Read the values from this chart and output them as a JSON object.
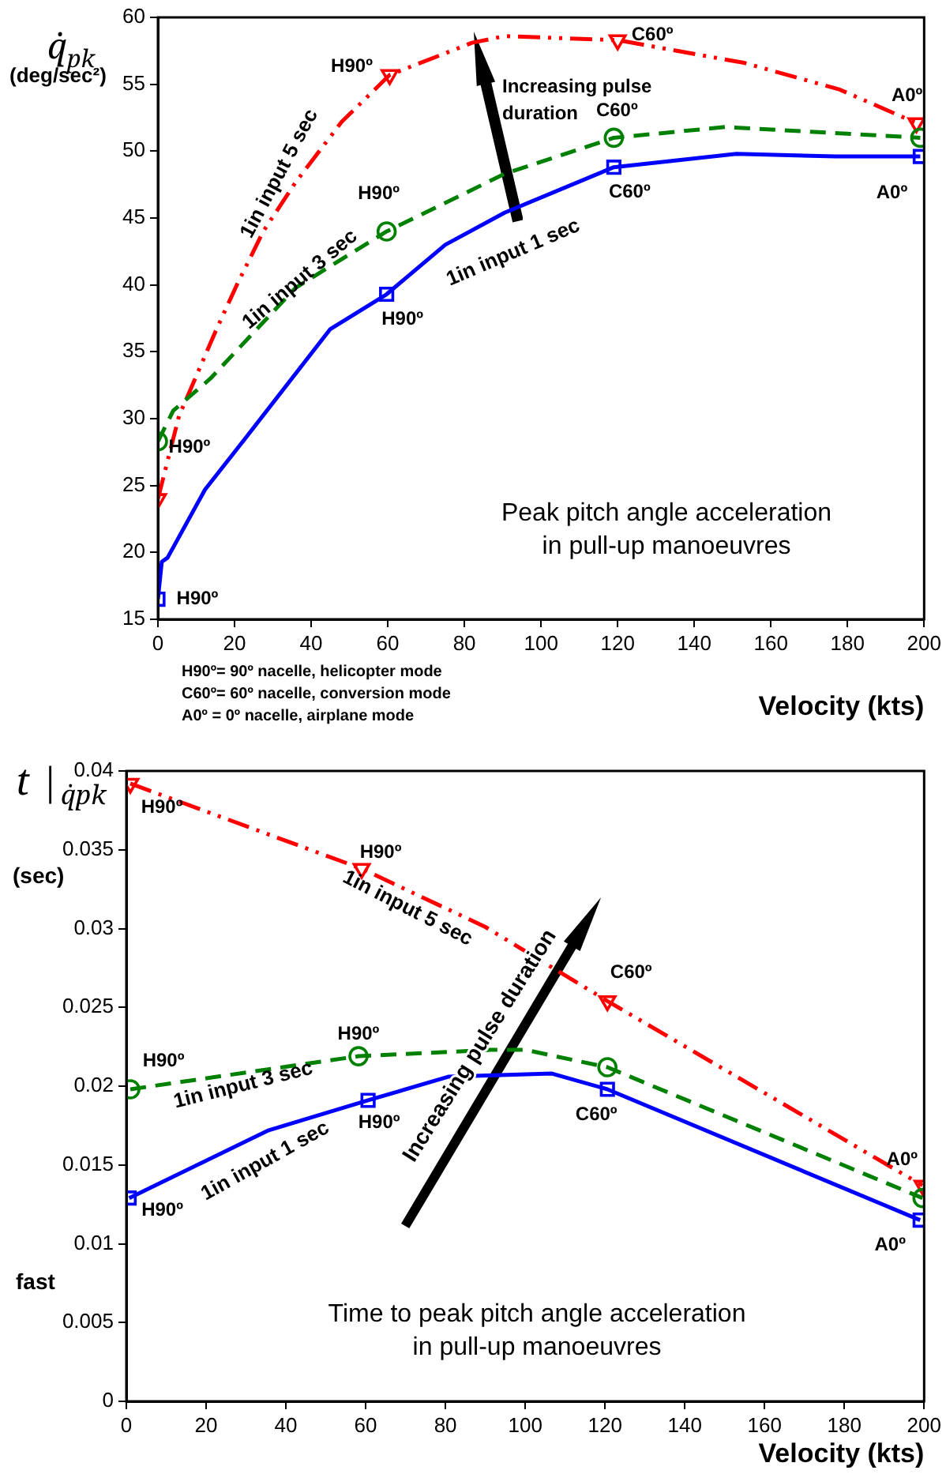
{
  "chart_data": [
    {
      "type": "line",
      "ylabel": "q̇$_{pk}$\n(deg/sec²)",
      "xlabel": "Velocity (kts)",
      "xlim": [
        0,
        200
      ],
      "xticks": [
        0,
        20,
        40,
        60,
        80,
        100,
        120,
        140,
        160,
        180,
        200
      ],
      "ylim": [
        15,
        60
      ],
      "yticks": [
        15,
        20,
        25,
        30,
        35,
        40,
        45,
        50,
        55,
        60
      ],
      "grid": false,
      "legend": false,
      "series": [
        {
          "name": "1in input 1 sec",
          "color": "#0000ff",
          "marker": "none",
          "line_style": "solid",
          "x": [
            0,
            1,
            2.5,
            12.3,
            23,
            45,
            59.7,
            75,
            90.5,
            119,
            151,
            177,
            199
          ],
          "values": [
            16.5,
            19.3,
            19.6,
            24.7,
            28.6,
            36.7,
            39.3,
            43,
            45.4,
            48.8,
            49.8,
            49.6,
            49.6
          ]
        },
        {
          "type": "scatter",
          "color": "#0000ff",
          "marker": "square",
          "x": [
            0,
            59.7,
            119,
            199
          ],
          "values": [
            16.5,
            39.3,
            48.8,
            49.6
          ]
        },
        {
          "name": "1in input 3 sec",
          "color": "#008000",
          "marker": "none",
          "line_style": "dashed",
          "x": [
            0,
            4,
            13.7,
            36,
            59.7,
            90.5,
            119,
            148,
            199
          ],
          "values": [
            28.3,
            30.6,
            33,
            39.8,
            44,
            48.3,
            51,
            51.8,
            51
          ]
        },
        {
          "type": "scatter",
          "color": "#008000",
          "marker": "circle",
          "x": [
            0,
            59.7,
            119,
            199
          ],
          "values": [
            28.3,
            44,
            51,
            51
          ]
        },
        {
          "name": "1in input 5 sec",
          "color": "#ff0000",
          "marker": "none",
          "line_style": "dashdot",
          "x": [
            0,
            5.5,
            15,
            20.6,
            27.5,
            36,
            48,
            60.5,
            82,
            90.5,
            120,
            153,
            178,
            198
          ],
          "values": [
            24,
            30.2,
            36.5,
            40,
            44,
            47.7,
            52.2,
            55.7,
            58.1,
            58.6,
            58.3,
            56.6,
            54.6,
            52.1
          ]
        },
        {
          "type": "scatter",
          "color": "#ff0000",
          "marker": "triangle",
          "x": [
            0,
            60.5,
            120,
            198
          ],
          "values": [
            24,
            55.7,
            58.3,
            52.1
          ]
        }
      ],
      "annotations": [
        {
          "text": "H90º",
          "x": 0,
          "y": 16.5
        },
        {
          "text": "H90º",
          "x": 59.7,
          "y": 39.3
        },
        {
          "text": "C60º",
          "x": 119,
          "y": 48.8
        },
        {
          "text": "A0º",
          "x": 199,
          "y": 49.6
        },
        {
          "text": "H90º",
          "x": 0,
          "y": 28.3
        },
        {
          "text": "H90º",
          "x": 59.7,
          "y": 44
        },
        {
          "text": "C60º",
          "x": 119,
          "y": 51
        },
        {
          "text": "H90º",
          "x": 60.5,
          "y": 55.7
        },
        {
          "text": "C60º",
          "x": 120,
          "y": 58.3
        },
        {
          "text": "A0º",
          "x": 198,
          "y": 52.1
        },
        "Increasing pulse\nduration",
        "Peak pitch angle acceleration\nin pull-up manoeuvres",
        "H90º= 90º nacelle, helicopter mode\nC60º= 60º nacelle, conversion mode\nA0º = 0º nacelle, airplane mode"
      ]
    },
    {
      "type": "line",
      "ylabel": "t |$_{q̇pk}$\n(sec)",
      "xlabel": "Velocity (kts)",
      "xlim": [
        0,
        200
      ],
      "xticks": [
        0,
        20,
        40,
        60,
        80,
        100,
        120,
        140,
        160,
        180,
        200
      ],
      "ylim": [
        0,
        0.04
      ],
      "yticks": [
        0,
        0.005,
        0.01,
        0.015,
        0.02,
        0.025,
        0.03,
        0.035,
        0.04
      ],
      "grid": false,
      "legend": false,
      "series": [
        {
          "name": "1in input 1 sec",
          "color": "#0000ff",
          "marker": "none",
          "line_style": "solid",
          "x": [
            0.7,
            35.7,
            60.6,
            80.7,
            106.7,
            120.6,
            199
          ],
          "values": [
            0.0129,
            0.0172,
            0.0191,
            0.0206,
            0.0208,
            0.0198,
            0.0115
          ]
        },
        {
          "type": "scatter",
          "color": "#0000ff",
          "marker": "square",
          "x": [
            0.7,
            60.6,
            120.6,
            199
          ],
          "values": [
            0.0129,
            0.0191,
            0.0198,
            0.0115
          ]
        },
        {
          "name": "1in input 3 sec",
          "color": "#008000",
          "marker": "none",
          "line_style": "dashed",
          "x": [
            1,
            58.2,
            91.3,
            100.1,
            120.6,
            199.6
          ],
          "values": [
            0.0198,
            0.0219,
            0.0223,
            0.0223,
            0.0212,
            0.0129
          ]
        },
        {
          "type": "scatter",
          "color": "#008000",
          "marker": "circle",
          "x": [
            1,
            58.2,
            120.6,
            199.6
          ],
          "values": [
            0.0198,
            0.0219,
            0.0212,
            0.0129
          ]
        },
        {
          "name": "1in input 5 sec",
          "color": "#ff0000",
          "marker": "none",
          "line_style": "dashdot",
          "x": [
            1,
            59,
            90,
            120.6,
            199.6
          ],
          "values": [
            0.0392,
            0.0338,
            0.0301,
            0.0254,
            0.0137
          ]
        },
        {
          "type": "scatter",
          "color": "#ff0000",
          "marker": "triangle",
          "x": [
            1,
            59,
            120.6,
            199.6
          ],
          "values": [
            0.0392,
            0.0338,
            0.0254,
            0.0137
          ]
        }
      ],
      "annotations": [
        {
          "text": "H90º",
          "x": 1,
          "y": 0.0392
        },
        {
          "text": "H90º",
          "x": 59,
          "y": 0.0338
        },
        {
          "text": "C60º",
          "x": 120.6,
          "y": 0.0254
        },
        {
          "text": "A0º",
          "x": 199.6,
          "y": 0.0137
        },
        {
          "text": "H90º",
          "x": 1,
          "y": 0.0198
        },
        {
          "text": "H90º",
          "x": 58.2,
          "y": 0.0219
        },
        {
          "text": "H90º",
          "x": 0.7,
          "y": 0.0129
        },
        {
          "text": "H90º",
          "x": 60.6,
          "y": 0.0191
        },
        {
          "text": "C60º",
          "x": 120.6,
          "y": 0.0198
        },
        {
          "text": "A0º",
          "x": 199,
          "y": 0.0115
        },
        "Increasing pulse duration",
        "Time to peak pitch angle acceleration\nin pull-up manoeuvres",
        "fast"
      ]
    }
  ]
}
